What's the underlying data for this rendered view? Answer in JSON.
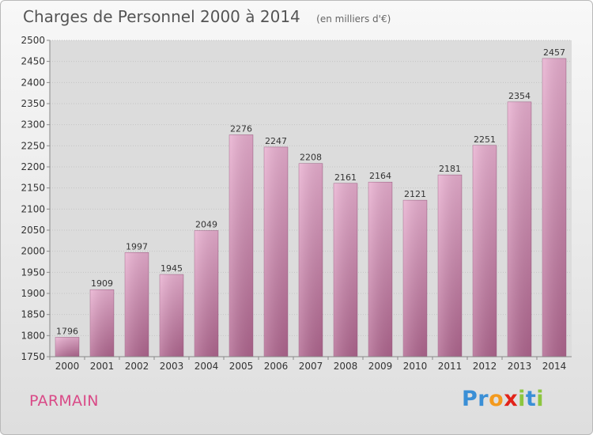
{
  "header": {
    "title": "Charges de Personnel 2000 à 2014",
    "unit": "(en milliers d'€)"
  },
  "footer": {
    "commune": "PARMAIN",
    "logo_letters": [
      "P",
      "r",
      "o",
      "x",
      "i",
      "t",
      "i"
    ],
    "logo_colors": [
      "#3a8fd6",
      "#3a8fd6",
      "#f39a1e",
      "#e2231a",
      "#8cc63f",
      "#3a8fd6",
      "#8cc63f"
    ]
  },
  "colors": {
    "bar_top": "#e9afd0",
    "bar_bottom": "#b0668f",
    "text": "#333333"
  },
  "chart_data": {
    "type": "bar",
    "title": "Charges de Personnel 2000 à 2014",
    "subtitle": "(en milliers d'€)",
    "categories": [
      "2000",
      "2001",
      "2002",
      "2003",
      "2004",
      "2005",
      "2006",
      "2007",
      "2008",
      "2009",
      "2010",
      "2011",
      "2012",
      "2013",
      "2014"
    ],
    "values": [
      1796,
      1909,
      1997,
      1945,
      2049,
      2276,
      2247,
      2208,
      2161,
      2164,
      2121,
      2181,
      2251,
      2354,
      2457
    ],
    "ylim": [
      1750,
      2500
    ],
    "yticks": [
      1750,
      1800,
      1850,
      1900,
      1950,
      2000,
      2050,
      2100,
      2150,
      2200,
      2250,
      2300,
      2350,
      2400,
      2450,
      2500
    ],
    "grid": true,
    "legend": "none"
  }
}
